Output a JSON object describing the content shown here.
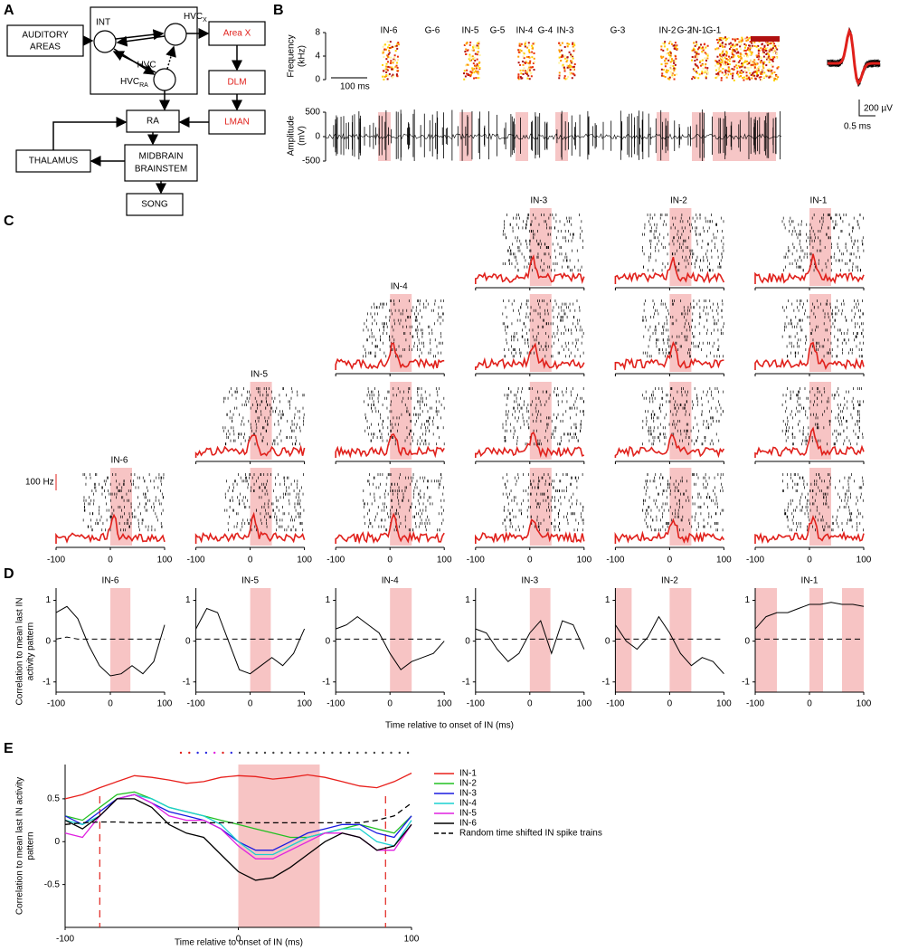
{
  "panel_labels": [
    "A",
    "B",
    "C",
    "D",
    "E"
  ],
  "diagram": {
    "auditory_areas": [
      "AUDITORY",
      "AREAS"
    ],
    "int": "INT",
    "hvc_x": {
      "name": "HVC",
      "sub": "X"
    },
    "hvc": "HVC",
    "hvc_ra": {
      "name": "HVC",
      "sub": "RA"
    },
    "area_x": "Area X",
    "dlm": "DLM",
    "lman": "LMAN",
    "ra": "RA",
    "thalamus": "THALAMUS",
    "midbrain_brainstem": [
      "MIDBRAIN",
      "BRAINSTEM"
    ],
    "song": "SONG"
  },
  "panel_b": {
    "freq_label": [
      "Frequency",
      "(kHz)"
    ],
    "freq_lim": [
      0,
      8
    ],
    "freq_ticks": [
      0,
      4,
      8
    ],
    "time_bar": "100 ms",
    "amp_label": [
      "Amplitude",
      "(mV)"
    ],
    "amp_lim": [
      -500,
      500
    ],
    "amp_ticks": [
      500,
      0,
      -500
    ],
    "syllables": [
      {
        "text": "IN-6",
        "color": "#e0201b"
      },
      {
        "text": "G-6",
        "color": "#2a2ae0"
      },
      {
        "text": "IN-5",
        "color": "#e0201b"
      },
      {
        "text": "G-5",
        "color": "#2a2ae0"
      },
      {
        "text": "IN-4",
        "color": "#e0201b"
      },
      {
        "text": "G-4",
        "color": "#2a2ae0"
      },
      {
        "text": "IN-3",
        "color": "#e0201b"
      },
      {
        "text": "G-3",
        "color": "#2a2ae0"
      },
      {
        "text": "IN-2",
        "color": "#e0201b"
      },
      {
        "text": "G-2",
        "color": "#2a2ae0"
      },
      {
        "text": "IN-1",
        "color": "#e0201b"
      },
      {
        "text": "G-1",
        "color": "#2a2ae0"
      }
    ],
    "scale_uv": "200 µV",
    "scale_ms": "0.5 ms"
  },
  "panel_c": {
    "titles": [
      "IN-6",
      "IN-5",
      "IN-4",
      "IN-3",
      "IN-2",
      "IN-1"
    ],
    "rate_bar": "100 Hz",
    "xlim": [
      -100,
      100
    ],
    "xticks": [
      -100,
      0,
      100
    ]
  },
  "chart_data": [
    {
      "type": "line",
      "title": "IN-6",
      "ylabel": [
        "Correlation to mean last IN",
        "activity pattern"
      ],
      "xlabel": "Time relative to onset of IN (ms)",
      "x": [
        -100,
        -80,
        -60,
        -40,
        -20,
        0,
        20,
        40,
        60,
        80,
        100
      ],
      "xlim": [
        -100,
        100
      ],
      "xticks": [
        -100,
        0,
        100
      ],
      "ylim": [
        -1.25,
        1.3
      ],
      "yticks": [
        -1,
        0,
        1
      ],
      "shaded": [
        [
          0,
          37
        ]
      ],
      "series": [
        {
          "color": "#000000",
          "values": [
            0.7,
            0.85,
            0.55,
            -0.1,
            -0.6,
            -0.85,
            -0.8,
            -0.6,
            -0.8,
            -0.5,
            0.4
          ]
        },
        {
          "color": "#000000",
          "dash": true,
          "values": [
            0.05,
            0.1,
            0.05,
            0.05,
            0.05,
            0.05,
            0.05,
            0.05,
            0.05,
            0.05,
            0.05
          ]
        }
      ]
    },
    {
      "type": "line",
      "title": "IN-5",
      "x": [
        -100,
        -80,
        -60,
        -40,
        -20,
        0,
        20,
        40,
        60,
        80,
        100
      ],
      "xlim": [
        -100,
        100
      ],
      "xticks": [
        -100,
        0,
        100
      ],
      "ylim": [
        -1.25,
        1.3
      ],
      "yticks": [
        -1,
        0,
        1
      ],
      "shaded": [
        [
          0,
          38
        ]
      ],
      "series": [
        {
          "color": "#000000",
          "values": [
            0.3,
            0.8,
            0.7,
            0.0,
            -0.7,
            -0.8,
            -0.6,
            -0.4,
            -0.6,
            -0.3,
            0.3
          ]
        },
        {
          "color": "#000000",
          "dash": true,
          "values": [
            0.05,
            0.05,
            0.05,
            0.05,
            0.05,
            0.05,
            0.05,
            0.05,
            0.05,
            0.05,
            0.05
          ]
        }
      ]
    },
    {
      "type": "line",
      "title": "IN-4",
      "x": [
        -100,
        -80,
        -60,
        -40,
        -20,
        0,
        20,
        40,
        60,
        80,
        100
      ],
      "xlim": [
        -100,
        100
      ],
      "xticks": [
        -100,
        0,
        100
      ],
      "ylim": [
        -1.25,
        1.3
      ],
      "yticks": [
        -1,
        0,
        1
      ],
      "shaded": [
        [
          0,
          40
        ]
      ],
      "series": [
        {
          "color": "#000000",
          "values": [
            0.3,
            0.4,
            0.6,
            0.4,
            0.2,
            -0.3,
            -0.7,
            -0.5,
            -0.4,
            -0.3,
            0.0
          ]
        },
        {
          "color": "#000000",
          "dash": true,
          "values": [
            0.05,
            0.05,
            0.05,
            0.05,
            0.05,
            0.05,
            0.05,
            0.05,
            0.05,
            0.05,
            0.05
          ]
        }
      ]
    },
    {
      "type": "line",
      "title": "IN-3",
      "x": [
        -100,
        -80,
        -60,
        -40,
        -20,
        0,
        20,
        40,
        60,
        80,
        100
      ],
      "xlim": [
        -100,
        100
      ],
      "xticks": [
        -100,
        0,
        100
      ],
      "ylim": [
        -1.25,
        1.3
      ],
      "yticks": [
        -1,
        0,
        1
      ],
      "shaded": [
        [
          0,
          38
        ]
      ],
      "series": [
        {
          "color": "#000000",
          "values": [
            0.3,
            0.2,
            -0.2,
            -0.5,
            -0.3,
            0.2,
            0.5,
            -0.3,
            0.5,
            0.4,
            -0.2
          ]
        },
        {
          "color": "#000000",
          "dash": true,
          "values": [
            0.05,
            0.05,
            0.05,
            0.05,
            0.05,
            0.05,
            0.05,
            0.05,
            0.05,
            0.05,
            0.05
          ]
        }
      ]
    },
    {
      "type": "line",
      "title": "IN-2",
      "x": [
        -100,
        -80,
        -60,
        -40,
        -20,
        0,
        20,
        40,
        60,
        80,
        100
      ],
      "xlim": [
        -100,
        100
      ],
      "xticks": [
        -100,
        0,
        100
      ],
      "ylim": [
        -1.25,
        1.3
      ],
      "yticks": [
        -1,
        0,
        1
      ],
      "shaded": [
        [
          -100,
          -70
        ],
        [
          0,
          40
        ]
      ],
      "series": [
        {
          "color": "#000000",
          "values": [
            0.4,
            0.0,
            -0.2,
            0.1,
            0.6,
            0.2,
            -0.3,
            -0.6,
            -0.4,
            -0.5,
            -0.8
          ]
        },
        {
          "color": "#000000",
          "dash": true,
          "values": [
            0.05,
            0.05,
            0.05,
            0.05,
            0.05,
            0.05,
            0.05,
            0.05,
            0.05,
            0.05,
            0.05
          ]
        }
      ]
    },
    {
      "type": "line",
      "title": "IN-1",
      "x": [
        -100,
        -80,
        -60,
        -40,
        -20,
        0,
        20,
        40,
        60,
        80,
        100
      ],
      "xlim": [
        -100,
        100
      ],
      "xticks": [
        -100,
        0,
        100
      ],
      "ylim": [
        -1.25,
        1.3
      ],
      "yticks": [
        -1,
        0,
        1
      ],
      "shaded": [
        [
          -100,
          -60
        ],
        [
          0,
          25
        ],
        [
          60,
          100
        ]
      ],
      "series": [
        {
          "color": "#000000",
          "values": [
            0.3,
            0.6,
            0.7,
            0.7,
            0.8,
            0.9,
            0.9,
            0.95,
            0.9,
            0.9,
            0.85
          ]
        },
        {
          "color": "#000000",
          "dash": true,
          "values": [
            0.05,
            0.05,
            0.05,
            0.05,
            0.05,
            0.05,
            0.05,
            0.05,
            0.05,
            0.05,
            0.05
          ]
        }
      ]
    },
    {
      "type": "line",
      "ylabel": [
        "Correlation to mean last IN activity",
        "pattern"
      ],
      "xlabel": "Time relative to onset of IN (ms)",
      "x": [
        -100,
        -90,
        -80,
        -70,
        -60,
        -50,
        -40,
        -30,
        -20,
        -10,
        0,
        10,
        20,
        30,
        40,
        50,
        60,
        70,
        80,
        90,
        100
      ],
      "xlim": [
        -100,
        100
      ],
      "xticks": [
        -100,
        0,
        100
      ],
      "ylim": [
        -1,
        0.9
      ],
      "yticks": [
        -0.5,
        0,
        0.5
      ],
      "shaded": [
        [
          0,
          47
        ]
      ],
      "vlines": [
        -80,
        85
      ],
      "legend": "right",
      "series": [
        {
          "name": "IN-1",
          "color": "#e8201c",
          "values": [
            0.5,
            0.55,
            0.63,
            0.7,
            0.77,
            0.75,
            0.72,
            0.68,
            0.7,
            0.75,
            0.77,
            0.76,
            0.73,
            0.75,
            0.78,
            0.75,
            0.7,
            0.65,
            0.63,
            0.7,
            0.8
          ]
        },
        {
          "name": "IN-2",
          "color": "#22c022",
          "values": [
            0.3,
            0.25,
            0.4,
            0.55,
            0.58,
            0.5,
            0.4,
            0.35,
            0.3,
            0.25,
            0.2,
            0.15,
            0.1,
            0.05,
            0.05,
            0.1,
            0.15,
            0.2,
            0.15,
            0.1,
            0.3
          ]
        },
        {
          "name": "IN-3",
          "color": "#1a1ae0",
          "values": [
            0.3,
            0.2,
            0.35,
            0.5,
            0.55,
            0.45,
            0.35,
            0.3,
            0.25,
            0.15,
            0.0,
            -0.1,
            -0.1,
            0.0,
            0.1,
            0.15,
            0.2,
            0.2,
            0.1,
            0.05,
            0.3
          ]
        },
        {
          "name": "IN-4",
          "color": "#1ad0d0",
          "values": [
            0.25,
            0.2,
            0.3,
            0.5,
            0.55,
            0.5,
            0.4,
            0.35,
            0.3,
            0.2,
            0.0,
            -0.15,
            -0.15,
            -0.05,
            0.05,
            0.1,
            0.15,
            0.15,
            0.0,
            -0.05,
            0.25
          ]
        },
        {
          "name": "IN-5",
          "color": "#e020e0",
          "values": [
            0.1,
            0.05,
            0.3,
            0.5,
            0.55,
            0.45,
            0.3,
            0.25,
            0.25,
            0.15,
            -0.05,
            -0.2,
            -0.2,
            -0.1,
            0.0,
            0.1,
            0.1,
            0.05,
            -0.1,
            -0.1,
            0.2
          ]
        },
        {
          "name": "IN-6",
          "color": "#000000",
          "values": [
            0.25,
            0.15,
            0.3,
            0.5,
            0.5,
            0.4,
            0.2,
            0.1,
            0.05,
            -0.15,
            -0.35,
            -0.45,
            -0.42,
            -0.3,
            -0.15,
            0.0,
            0.1,
            0.05,
            -0.1,
            -0.05,
            0.2
          ]
        },
        {
          "name": "Random time shifted IN spike trains",
          "color": "#000000",
          "dash": true,
          "values": [
            0.2,
            0.22,
            0.23,
            0.23,
            0.22,
            0.22,
            0.22,
            0.22,
            0.22,
            0.22,
            0.22,
            0.22,
            0.22,
            0.22,
            0.22,
            0.22,
            0.22,
            0.22,
            0.25,
            0.3,
            0.45
          ]
        }
      ]
    }
  ]
}
